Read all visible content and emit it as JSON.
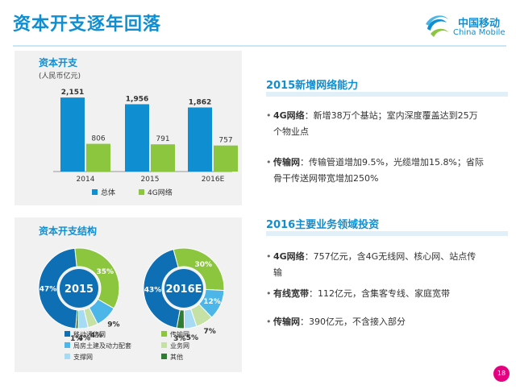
{
  "title": "资本开支逐年回落",
  "logo": {
    "cn": "中国移动",
    "en": "China Mobile"
  },
  "bar_chart_panel": {
    "title": "资本开支",
    "unit": "(人民币亿元)"
  },
  "chart_data": [
    {
      "type": "bar",
      "title": "资本开支",
      "ylabel": "(人民币亿元)",
      "categories": [
        "2014",
        "2015",
        "2016E"
      ],
      "series": [
        {
          "name": "总体",
          "values": [
            2151,
            1956,
            1862
          ],
          "labels": [
            "2,151",
            "1,956",
            "1,862"
          ],
          "color": "#0f8ed2"
        },
        {
          "name": "4G网络",
          "values": [
            806,
            791,
            757
          ],
          "labels": [
            "806",
            "791",
            "757"
          ],
          "color": "#8cc63f"
        }
      ],
      "ylim": [
        0,
        2200
      ],
      "legend": "bottom"
    },
    {
      "type": "pie",
      "title": "资本开支结构",
      "center_label": "2015",
      "categories": [
        "移动通信网",
        "传输网",
        "局房土建及动力配套",
        "业务网",
        "支撑网",
        "其他"
      ],
      "values": [
        47,
        35,
        9,
        4,
        4,
        1
      ],
      "labels": [
        "47%",
        "35%",
        "9%",
        "4%",
        "4%",
        "1%"
      ]
    },
    {
      "type": "pie",
      "title": "资本开支结构",
      "center_label": "2016E",
      "categories": [
        "移动通信网",
        "传输网",
        "局房土建及动力配套",
        "业务网",
        "支撑网",
        "其他"
      ],
      "values": [
        43,
        30,
        12,
        7,
        5,
        3
      ],
      "labels": [
        "43%",
        "30%",
        "12%",
        "7%",
        "5%",
        "3%"
      ]
    }
  ],
  "donut_panel": {
    "title": "资本开支结构",
    "legend": [
      {
        "label": "移动通信网",
        "color": "#0f6fb5"
      },
      {
        "label": "传输网",
        "color": "#8cc63f"
      },
      {
        "label": "局房土建及动力配套",
        "color": "#4db6e8"
      },
      {
        "label": "业务网",
        "color": "#c5e1a5"
      },
      {
        "label": "支撑网",
        "color": "#a7dbf3"
      },
      {
        "label": "其他",
        "color": "#2e7d32"
      }
    ]
  },
  "section1": {
    "heading": "2015新增网络能力",
    "bullets": [
      {
        "key": "4G网络",
        "text": "：新增38万个基站；室内深度覆盖达到25万个物业点"
      },
      {
        "key": "传输网",
        "text": "：传输管道增加9.5%，光缆增加15.8%；省际骨干传送网带宽增加250%"
      }
    ]
  },
  "section2": {
    "heading": "2016主要业务领域投资",
    "bullets": [
      {
        "key": "4G网络",
        "text": "：757亿元，含4G无线网、核心网、站点传输"
      },
      {
        "key": "有线宽带",
        "text": "：112亿元，含集客专线、家庭宽带"
      },
      {
        "key": "传输网",
        "text": "：390亿元，不含接入部分"
      }
    ]
  },
  "page_number": "18",
  "bullet_glyph": "•"
}
